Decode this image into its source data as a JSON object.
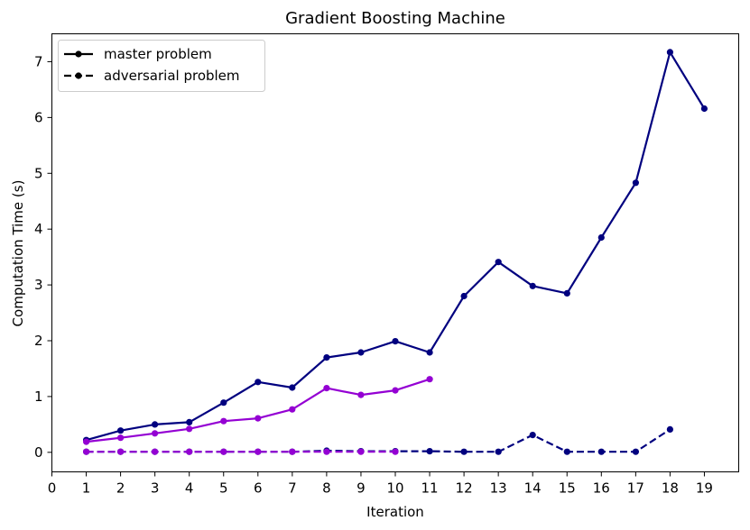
{
  "chart_data": {
    "type": "line",
    "title": "Gradient Boosting Machine",
    "xlabel": "Iteration",
    "ylabel": "Computation Time (s)",
    "xlim": [
      0,
      20
    ],
    "ylim": [
      -0.35,
      7.5
    ],
    "xticks": [
      0,
      1,
      2,
      3,
      4,
      5,
      6,
      7,
      8,
      9,
      10,
      11,
      12,
      13,
      14,
      15,
      16,
      17,
      18,
      19
    ],
    "yticks": [
      0,
      1,
      2,
      3,
      4,
      5,
      6,
      7
    ],
    "grid": false,
    "legend": {
      "placement": "top-left",
      "entries": [
        {
          "label": "master problem",
          "linestyle": "solid"
        },
        {
          "label": "adversarial problem",
          "linestyle": "dashed"
        }
      ]
    },
    "series": [
      {
        "color": "#00007f",
        "linestyle": "solid",
        "x": [
          1,
          2,
          3,
          4,
          5,
          6,
          7,
          8,
          9,
          10,
          11,
          12,
          13,
          14,
          15,
          16,
          17,
          18,
          19
        ],
        "values": [
          0.22,
          0.39,
          0.5,
          0.54,
          0.89,
          1.26,
          1.16,
          1.7,
          1.79,
          1.99,
          1.79,
          2.8,
          3.41,
          2.98,
          2.85,
          3.85,
          4.83,
          7.17,
          6.16
        ]
      },
      {
        "color": "#9400d3",
        "linestyle": "solid",
        "x": [
          1,
          2,
          3,
          4,
          5,
          6,
          7,
          8,
          9,
          10,
          11
        ],
        "values": [
          0.19,
          0.26,
          0.34,
          0.42,
          0.56,
          0.61,
          0.77,
          1.15,
          1.03,
          1.11,
          1.31
        ]
      },
      {
        "color": "#00007f",
        "linestyle": "dashed",
        "x": [
          1,
          2,
          3,
          4,
          5,
          6,
          7,
          8,
          9,
          10,
          11,
          12,
          13,
          14,
          15,
          16,
          17,
          18
        ],
        "values": [
          0.01,
          0.01,
          0.01,
          0.01,
          0.01,
          0.01,
          0.01,
          0.03,
          0.02,
          0.02,
          0.02,
          0.01,
          0.01,
          0.31,
          0.01,
          0.01,
          0.01,
          0.41
        ]
      },
      {
        "color": "#9400d3",
        "linestyle": "dashed",
        "x": [
          1,
          2,
          3,
          4,
          5,
          6,
          7,
          8,
          9,
          10
        ],
        "values": [
          0.01,
          0.01,
          0.01,
          0.01,
          0.01,
          0.01,
          0.01,
          0.01,
          0.01,
          0.01
        ]
      }
    ]
  }
}
